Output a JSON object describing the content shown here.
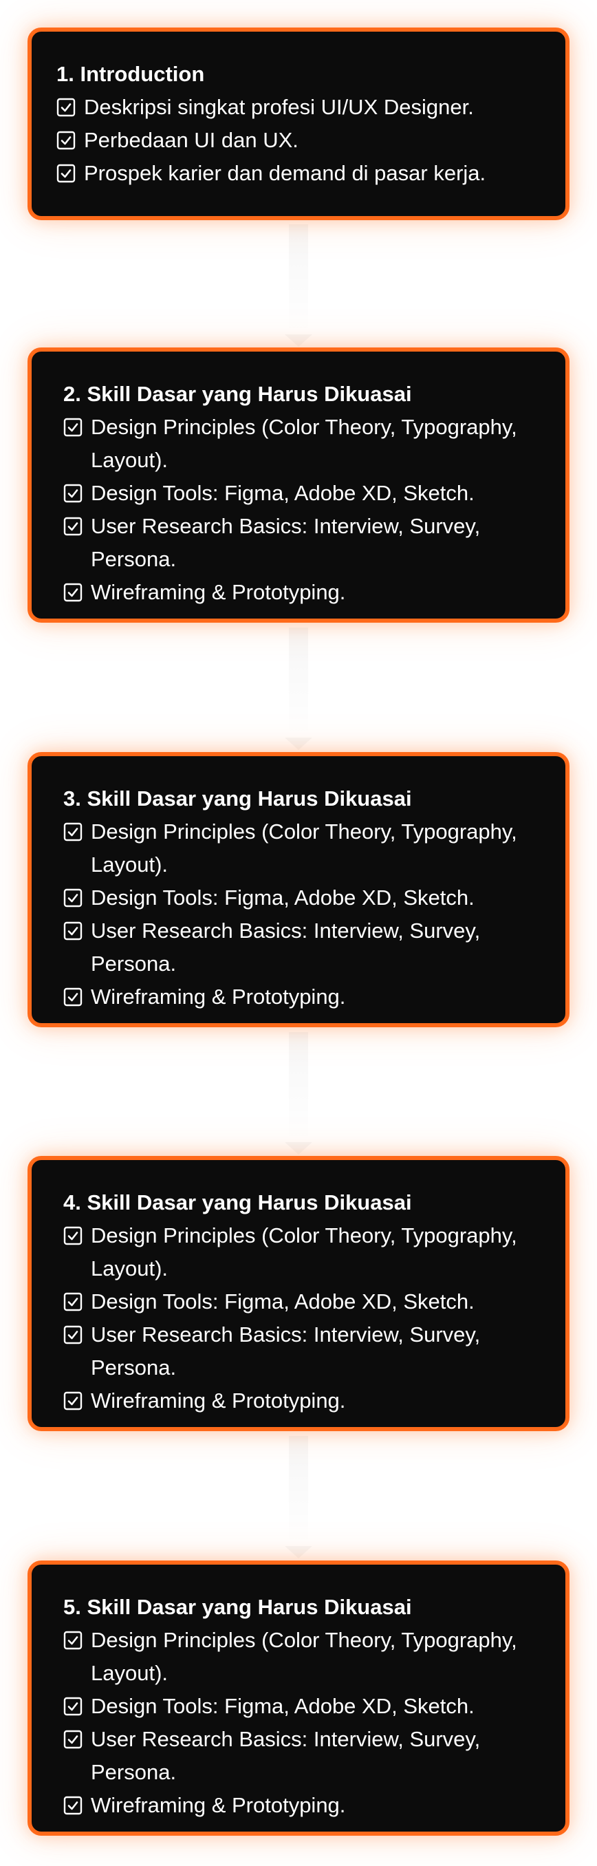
{
  "cards": [
    {
      "title": "1. Introduction",
      "items": [
        {
          "text": "Deskripsi singkat profesi UI/UX Designer."
        },
        {
          "text": "Perbedaan UI dan UX."
        },
        {
          "text": "Prospek karier dan demand di pasar kerja."
        }
      ]
    },
    {
      "title": "2. Skill Dasar yang Harus Dikuasai",
      "items": [
        {
          "text": "Design Principles (Color Theory, Typography, Layout)."
        },
        {
          "text": "Design Tools: Figma, Adobe XD, Sketch."
        },
        {
          "text": "User Research Basics: Interview, Survey, Persona."
        },
        {
          "text": "Wireframing & Prototyping."
        }
      ]
    },
    {
      "title": "3. Skill Dasar yang Harus Dikuasai",
      "items": [
        {
          "text": "Design Principles (Color Theory, Typography, Layout)."
        },
        {
          "text": "Design Tools: Figma, Adobe XD, Sketch."
        },
        {
          "text": "User Research Basics: Interview, Survey, Persona."
        },
        {
          "text": "Wireframing & Prototyping."
        }
      ]
    },
    {
      "title": "4. Skill Dasar yang Harus Dikuasai",
      "items": [
        {
          "text": "Design Principles (Color Theory, Typography, Layout)."
        },
        {
          "text": "Design Tools: Figma, Adobe XD, Sketch."
        },
        {
          "text": "User Research Basics: Interview, Survey, Persona."
        },
        {
          "text": "Wireframing & Prototyping."
        }
      ]
    },
    {
      "title": "5. Skill Dasar yang Harus Dikuasai",
      "items": [
        {
          "text": "Design Principles (Color Theory, Typography, Layout)."
        },
        {
          "text": "Design Tools: Figma, Adobe XD, Sketch."
        },
        {
          "text": "User Research Basics: Interview, Survey, Persona."
        },
        {
          "text": "Wireframing & Prototyping."
        }
      ]
    }
  ],
  "icons": {
    "item_icon": "checkbox-checked-icon"
  },
  "colors": {
    "card_background": "#0c0c0c",
    "card_border": "#ff6a1a",
    "text": "#ffffff",
    "page_background": "#ffffff"
  }
}
